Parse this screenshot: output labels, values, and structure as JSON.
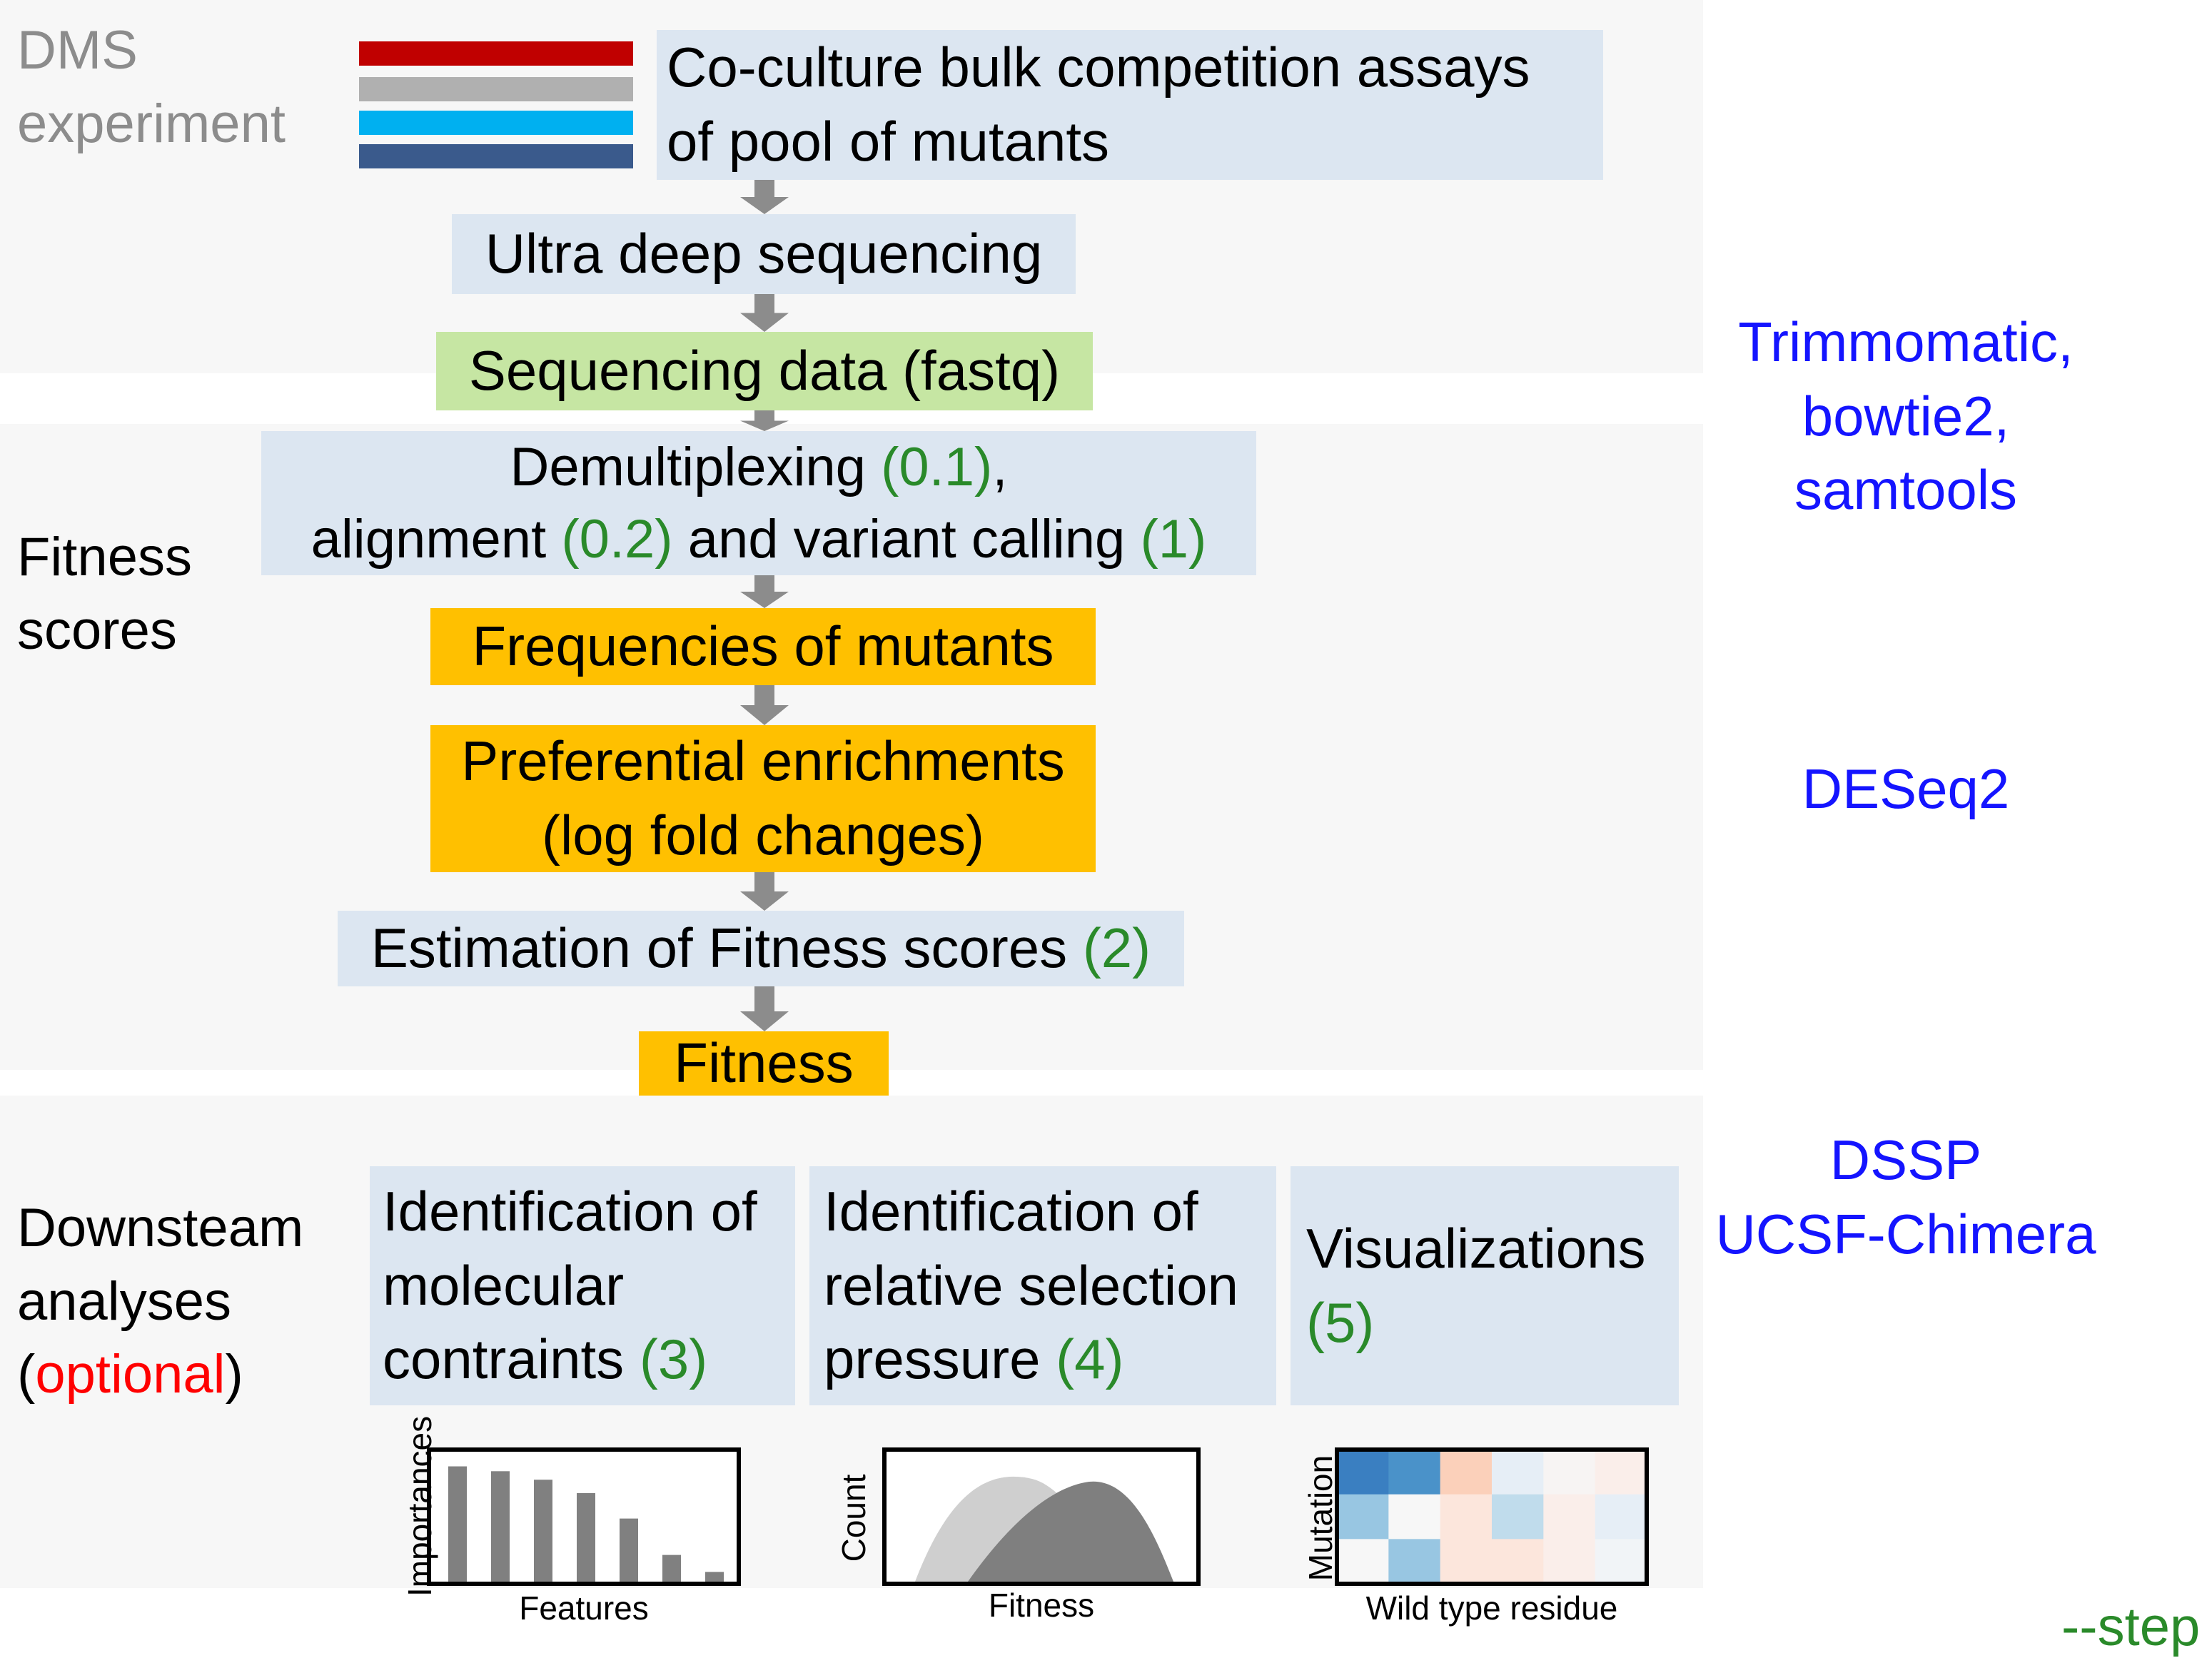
{
  "sections": {
    "dms": {
      "label_line1": "DMS",
      "label_line2": "experiment"
    },
    "fitness": {
      "label_line1": "Fitness",
      "label_line2": "scores"
    },
    "downstream": {
      "label_line1": "Downsteam",
      "label_line2": "analyses",
      "paren_open": "(",
      "optional": "optional",
      "paren_close": ")"
    }
  },
  "flow": {
    "coculture_line1": "Co-culture bulk competition assays",
    "coculture_line2": "of pool of mutants",
    "ultra": "Ultra deep sequencing",
    "seqdata": "Sequencing data (fastq)",
    "demux_line1_text": "Demultiplexing ",
    "demux_line1_num": "(0.1)",
    "demux_line1_tail": ",",
    "demux_line2_a": "alignment ",
    "demux_line2_num1": "(0.2)",
    "demux_line2_b": " and variant calling ",
    "demux_line2_num2": "(1)",
    "frequencies": "Frequencies  of mutants",
    "pref_line1": "Preferential enrichments",
    "pref_line2": "(log fold changes)",
    "estimation_text": "Estimation of Fitness scores ",
    "estimation_num": "(2)",
    "fitness": "Fitness"
  },
  "analyses": [
    {
      "line1": "Identification of",
      "line2": "molecular",
      "line3": "contraints ",
      "num": "(3)"
    },
    {
      "line1": "Identification of",
      "line2": "relative selection",
      "line3": "pressure ",
      "num": "(4)"
    },
    {
      "line1": "Visualizations",
      "num": "(5)"
    }
  ],
  "tools": {
    "group1_line1": "Trimmomatic,",
    "group1_line2": "bowtie2,",
    "group1_line3": "samtools",
    "group2": "DESeq2",
    "group3_line1": "DSSP",
    "group3_line2": "UCSF-Chimera"
  },
  "steps_label": "--step",
  "pool_colors": [
    "#c00000",
    "#b0b0b0",
    "#00b0f0",
    "#3a5a8c"
  ],
  "mini_plots": {
    "bar": {
      "ylabel": "Importances",
      "xlabel": "Features",
      "values": [
        0.95,
        0.91,
        0.84,
        0.73,
        0.52,
        0.22,
        0.08
      ]
    },
    "density": {
      "ylabel": "Count",
      "xlabel": "Fitness"
    },
    "heatmap": {
      "ylabel": "Mutation",
      "xlabel": "Wild type residue",
      "cells": [
        [
          "#3a7fc1",
          "#4a92c9",
          "#fbd0ba",
          "#e6eef6",
          "#f7f4f3",
          "#faeeea"
        ],
        [
          "#98c6e2",
          "#f7f7f7",
          "#fce6dc",
          "#c0dcec",
          "#faeeea",
          "#e6eef6"
        ],
        [
          "#f7f7f7",
          "#98c6e2",
          "#fce6dc",
          "#fce6dc",
          "#faeeea",
          "#f1f4f7"
        ]
      ]
    }
  }
}
